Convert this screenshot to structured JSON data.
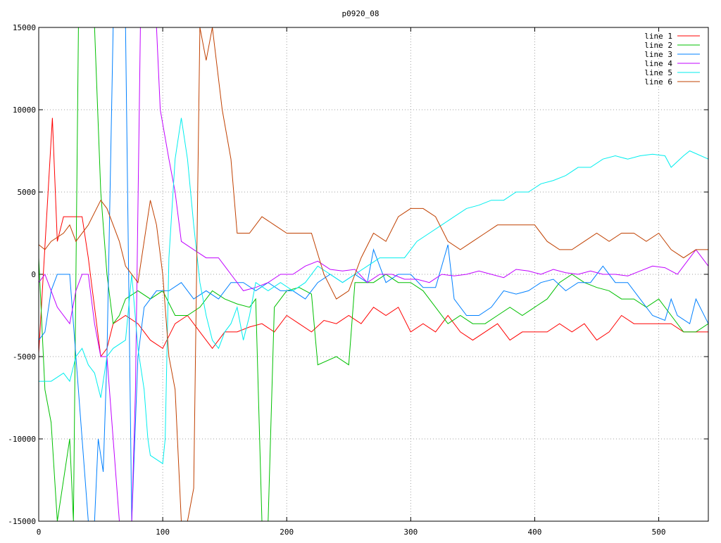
{
  "chart_data": {
    "type": "line",
    "title": "p0920_08",
    "xlabel": "",
    "ylabel": "",
    "xlim": [
      0,
      540
    ],
    "ylim": [
      -15000,
      15000
    ],
    "xticks": [
      0,
      100,
      200,
      300,
      400,
      500
    ],
    "yticks": [
      -15000,
      -10000,
      -5000,
      0,
      5000,
      10000,
      15000
    ],
    "grid": true,
    "legend_position": "top-right",
    "series": [
      {
        "name": "line 1",
        "color": "#ff0000",
        "x": [
          0,
          11,
          15,
          20,
          35,
          40,
          50,
          55,
          60,
          70,
          80,
          90,
          100,
          110,
          120,
          130,
          140,
          150,
          160,
          170,
          180,
          190,
          200,
          210,
          220,
          230,
          240,
          250,
          260,
          270,
          280,
          290,
          300,
          310,
          320,
          330,
          340,
          350,
          360,
          370,
          380,
          390,
          400,
          410,
          420,
          430,
          440,
          450,
          460,
          470,
          480,
          490,
          500,
          510,
          520,
          530,
          540
        ],
        "y": [
          -4800,
          9500,
          2000,
          3500,
          3500,
          1000,
          -5000,
          -4500,
          -3000,
          -2500,
          -3000,
          -4000,
          -4500,
          -3000,
          -2500,
          -3500,
          -4500,
          -3500,
          -3500,
          -3200,
          -3000,
          -3500,
          -2500,
          -3000,
          -3500,
          -2800,
          -3000,
          -2500,
          -3000,
          -2000,
          -2500,
          -2000,
          -3500,
          -3000,
          -3500,
          -2500,
          -3500,
          -4000,
          -3500,
          -3000,
          -4000,
          -3500,
          -3500,
          -3500,
          -3000,
          -3500,
          -3000,
          -4000,
          -3500,
          -2500,
          -3000,
          -3000,
          -3000,
          -3000,
          -3500,
          -3500,
          -3500
        ]
      },
      {
        "name": "line 2",
        "color": "#00c000",
        "x": [
          0,
          5,
          10,
          15,
          25,
          28,
          32,
          45,
          50,
          55,
          60,
          65,
          70,
          80,
          90,
          100,
          110,
          120,
          130,
          140,
          150,
          160,
          170,
          175,
          180,
          185,
          190,
          200,
          210,
          220,
          225,
          240,
          250,
          255,
          270,
          280,
          290,
          300,
          310,
          320,
          330,
          340,
          350,
          360,
          370,
          380,
          390,
          400,
          410,
          420,
          430,
          440,
          450,
          460,
          470,
          480,
          490,
          500,
          510,
          520,
          530,
          540
        ],
        "y": [
          1000,
          -7000,
          -9000,
          -15000,
          -10000,
          -15000,
          15000,
          15000,
          5000,
          0,
          -3000,
          -2500,
          -1500,
          -1000,
          -1500,
          -1000,
          -2500,
          -2500,
          -2000,
          -1000,
          -1500,
          -1800,
          -2000,
          -1500,
          -15000,
          -15000,
          -2000,
          -1000,
          -800,
          -1200,
          -5500,
          -5000,
          -5500,
          -500,
          -500,
          0,
          -500,
          -500,
          -1000,
          -2000,
          -3000,
          -2500,
          -3000,
          -3000,
          -2500,
          -2000,
          -2500,
          -2000,
          -1500,
          -500,
          0,
          -500,
          -800,
          -1000,
          -1500,
          -1500,
          -2000,
          -1500,
          -2500,
          -3500,
          -3500,
          -3000
        ]
      },
      {
        "name": "line 3",
        "color": "#0080ff",
        "x": [
          0,
          5,
          10,
          15,
          25,
          30,
          35,
          40,
          45,
          48,
          52,
          55,
          60,
          70,
          75,
          80,
          85,
          95,
          105,
          115,
          125,
          135,
          145,
          155,
          165,
          175,
          185,
          195,
          205,
          215,
          225,
          235,
          245,
          255,
          265,
          270,
          280,
          290,
          300,
          310,
          320,
          330,
          335,
          345,
          355,
          365,
          375,
          385,
          395,
          405,
          415,
          425,
          435,
          445,
          455,
          465,
          475,
          485,
          495,
          505,
          510,
          515,
          525,
          530,
          540
        ],
        "y": [
          -4000,
          -3500,
          -1000,
          0,
          0,
          -5000,
          -10000,
          -15000,
          -15000,
          -10000,
          -12000,
          -5000,
          15000,
          15000,
          -15000,
          -5000,
          -2000,
          -1000,
          -1000,
          -500,
          -1500,
          -1000,
          -1500,
          -500,
          -500,
          -1000,
          -500,
          -1000,
          -1000,
          -1500,
          -500,
          0,
          -500,
          0,
          -500,
          1500,
          -500,
          0,
          0,
          -800,
          -800,
          1800,
          -1500,
          -2500,
          -2500,
          -2000,
          -1000,
          -1200,
          -1000,
          -500,
          -300,
          -1000,
          -500,
          -500,
          500,
          -500,
          -500,
          -1500,
          -2500,
          -2800,
          -1500,
          -2500,
          -3000,
          -1500,
          -3000
        ]
      },
      {
        "name": "line 4",
        "color": "#c000ff",
        "x": [
          0,
          5,
          10,
          15,
          25,
          30,
          35,
          40,
          45,
          50,
          55,
          60,
          65,
          75,
          78,
          82,
          95,
          98,
          105,
          110,
          115,
          125,
          135,
          145,
          155,
          165,
          175,
          185,
          195,
          205,
          215,
          225,
          235,
          245,
          255,
          265,
          275,
          285,
          295,
          305,
          315,
          325,
          335,
          345,
          355,
          365,
          375,
          385,
          395,
          405,
          415,
          425,
          435,
          445,
          455,
          465,
          475,
          485,
          495,
          505,
          515,
          530,
          540
        ],
        "y": [
          -500,
          0,
          -1000,
          -2000,
          -3000,
          -1000,
          0,
          0,
          -3000,
          -5000,
          -5000,
          -10000,
          -15000,
          -15000,
          -7000,
          15000,
          15000,
          10000,
          7000,
          5000,
          2000,
          1500,
          1000,
          1000,
          0,
          -1000,
          -800,
          -500,
          0,
          0,
          500,
          800,
          300,
          200,
          300,
          -500,
          0,
          0,
          -300,
          -300,
          -500,
          0,
          -100,
          0,
          200,
          0,
          -200,
          300,
          200,
          0,
          300,
          100,
          0,
          200,
          0,
          0,
          -100,
          200,
          500,
          400,
          0,
          1500,
          500
        ]
      },
      {
        "name": "line 5",
        "color": "#00eeee",
        "x": [
          0,
          10,
          20,
          25,
          30,
          35,
          40,
          45,
          50,
          55,
          60,
          70,
          75,
          80,
          85,
          88,
          90,
          100,
          102,
          105,
          110,
          115,
          120,
          125,
          130,
          135,
          140,
          145,
          150,
          155,
          160,
          165,
          170,
          175,
          185,
          195,
          205,
          215,
          225,
          235,
          245,
          255,
          265,
          275,
          285,
          295,
          305,
          315,
          325,
          335,
          345,
          355,
          365,
          375,
          385,
          395,
          405,
          415,
          425,
          435,
          445,
          455,
          465,
          475,
          485,
          495,
          505,
          510,
          520,
          525,
          540
        ],
        "y": [
          -6500,
          -6500,
          -6000,
          -6500,
          -5000,
          -4500,
          -5500,
          -6000,
          -7500,
          -5000,
          -4500,
          -4000,
          0,
          -4500,
          -7000,
          -10000,
          -11000,
          -11500,
          -10000,
          1000,
          7000,
          9500,
          7000,
          3000,
          -500,
          -2500,
          -4000,
          -4500,
          -3500,
          -3000,
          -2000,
          -4000,
          -2500,
          -500,
          -1000,
          -500,
          -1000,
          -500,
          500,
          0,
          -500,
          0,
          500,
          1000,
          1000,
          1000,
          2000,
          2500,
          3000,
          3500,
          4000,
          4200,
          4500,
          4500,
          5000,
          5000,
          5500,
          5700,
          6000,
          6500,
          6500,
          7000,
          7200,
          7000,
          7200,
          7300,
          7200,
          6500,
          7200,
          7500,
          7000
        ]
      },
      {
        "name": "line 6",
        "color": "#c04000",
        "x": [
          0,
          5,
          10,
          20,
          25,
          30,
          40,
          50,
          55,
          65,
          70,
          80,
          85,
          90,
          95,
          100,
          105,
          110,
          115,
          120,
          125,
          130,
          135,
          140,
          148,
          155,
          160,
          170,
          180,
          190,
          200,
          210,
          220,
          230,
          240,
          250,
          260,
          270,
          280,
          290,
          300,
          310,
          320,
          330,
          340,
          350,
          360,
          370,
          380,
          390,
          400,
          410,
          420,
          430,
          440,
          450,
          460,
          470,
          480,
          490,
          500,
          510,
          520,
          530,
          540
        ],
        "y": [
          1800,
          1500,
          2000,
          2500,
          3000,
          2000,
          3000,
          4500,
          4000,
          2000,
          500,
          -500,
          2000,
          4500,
          3000,
          0,
          -5000,
          -7000,
          -15000,
          -15000,
          -13000,
          15000,
          13000,
          15000,
          10000,
          7000,
          2500,
          2500,
          3500,
          3000,
          2500,
          2500,
          2500,
          0,
          -1500,
          -1000,
          1000,
          2500,
          2000,
          3500,
          4000,
          4000,
          3500,
          2000,
          1500,
          2000,
          2500,
          3000,
          3000,
          3000,
          3000,
          2000,
          1500,
          1500,
          2000,
          2500,
          2000,
          2500,
          2500,
          2000,
          2500,
          1500,
          1000,
          1500,
          1500
        ]
      }
    ]
  }
}
